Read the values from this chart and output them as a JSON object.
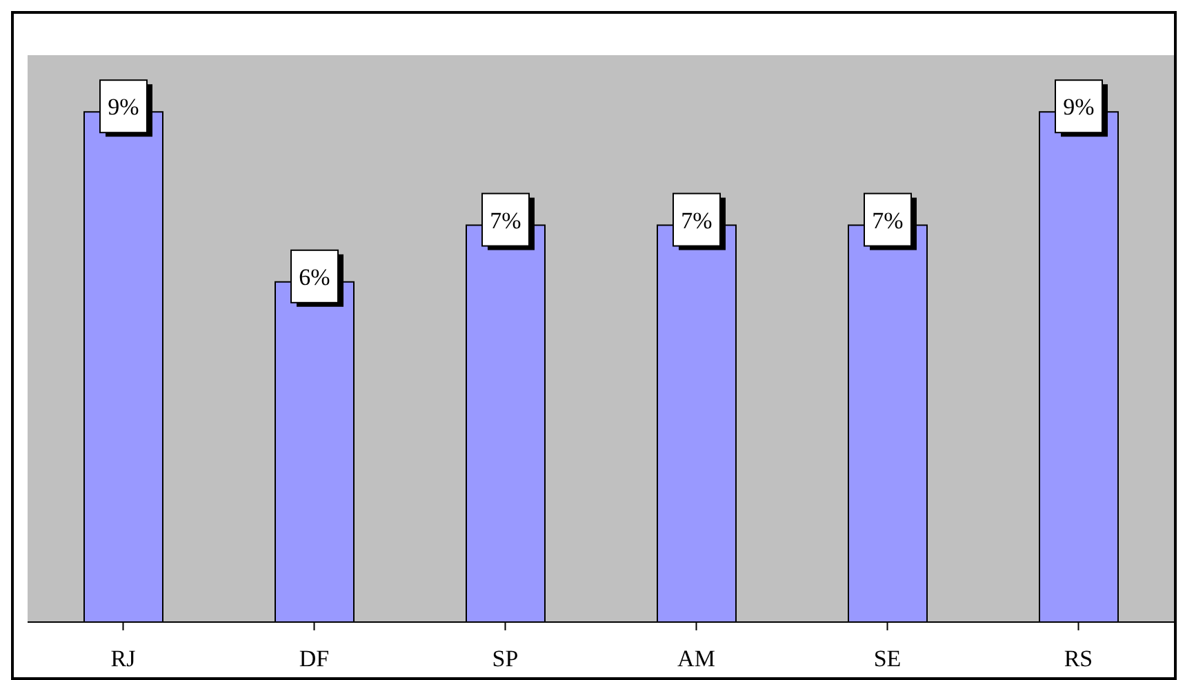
{
  "chart_data": {
    "type": "bar",
    "categories": [
      "RJ",
      "DF",
      "SP",
      "AM",
      "SE",
      "RS"
    ],
    "values": [
      9,
      6,
      7,
      7,
      7,
      9
    ],
    "value_labels": [
      "9%",
      "6%",
      "7%",
      "7%",
      "7%",
      "9%"
    ],
    "color": "#9999ff",
    "grid": false,
    "legend": false
  }
}
